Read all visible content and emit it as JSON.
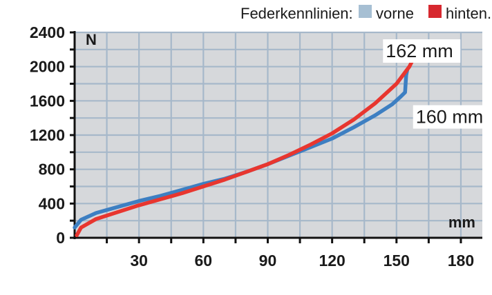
{
  "chart_data": {
    "type": "line",
    "legend": {
      "title": "Federkennlinien:",
      "placement": "top-right",
      "entries": [
        {
          "label": "vorne",
          "color": "#a6bfd3"
        },
        {
          "label": "hinten.",
          "color": "#d7282f"
        }
      ]
    },
    "xlabel": "mm",
    "ylabel": "N",
    "xlim": [
      0,
      190
    ],
    "ylim": [
      0,
      2400
    ],
    "x_ticks": [
      30,
      60,
      90,
      120,
      150,
      180
    ],
    "y_ticks": [
      0,
      400,
      800,
      1200,
      1600,
      2000,
      2400
    ],
    "grid": true,
    "background_color": "#d6d8db",
    "grid_color": "#a6b8ca",
    "series": [
      {
        "name": "vorne",
        "color": "#3d7fc2",
        "points": [
          [
            0,
            120
          ],
          [
            3,
            210
          ],
          [
            10,
            290
          ],
          [
            20,
            360
          ],
          [
            30,
            430
          ],
          [
            40,
            490
          ],
          [
            50,
            560
          ],
          [
            60,
            630
          ],
          [
            70,
            690
          ],
          [
            80,
            770
          ],
          [
            90,
            860
          ],
          [
            100,
            960
          ],
          [
            110,
            1060
          ],
          [
            120,
            1160
          ],
          [
            130,
            1290
          ],
          [
            140,
            1430
          ],
          [
            148,
            1560
          ],
          [
            152,
            1650
          ],
          [
            154,
            1700
          ],
          [
            154.5,
            1900
          ],
          [
            155,
            1960
          ]
        ]
      },
      {
        "name": "hinten.",
        "color": "#e8362f",
        "points": [
          [
            1,
            30
          ],
          [
            3,
            120
          ],
          [
            10,
            220
          ],
          [
            20,
            300
          ],
          [
            30,
            380
          ],
          [
            40,
            450
          ],
          [
            50,
            520
          ],
          [
            60,
            600
          ],
          [
            70,
            680
          ],
          [
            80,
            770
          ],
          [
            90,
            860
          ],
          [
            100,
            970
          ],
          [
            110,
            1090
          ],
          [
            120,
            1220
          ],
          [
            130,
            1380
          ],
          [
            140,
            1570
          ],
          [
            150,
            1800
          ],
          [
            156,
            2000
          ],
          [
            158,
            2100
          ],
          [
            160,
            2220
          ]
        ]
      }
    ],
    "annotations": [
      {
        "text": "162 mm",
        "x": 145,
        "y": 2110
      },
      {
        "text": "160 mm",
        "x": 159,
        "y": 1340
      }
    ]
  }
}
